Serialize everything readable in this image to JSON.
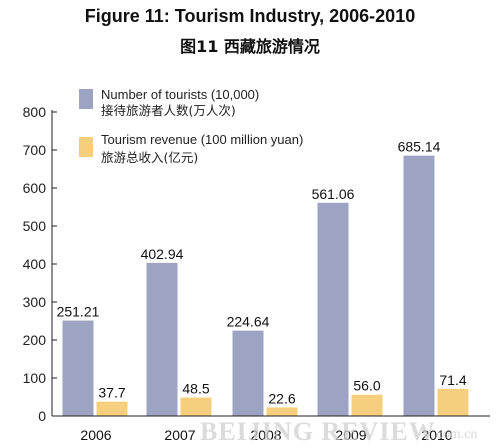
{
  "title_en": "Figure 11: Tourism Industry, 2006-2010",
  "title_cn": "图11  西藏旅游情况",
  "watermark": "BEIJING REVIEW",
  "watermark_suffix": ".com.cn",
  "colors": {
    "tourists": "#9da3c2",
    "revenue": "#f5cf7e"
  },
  "chart_data": {
    "type": "bar",
    "categories": [
      "2006",
      "2007",
      "2008",
      "2009",
      "2010"
    ],
    "ylim": [
      0,
      800
    ],
    "yticks": [
      0,
      100,
      200,
      300,
      400,
      500,
      600,
      700,
      800
    ],
    "series": [
      {
        "name": "Number of tourists (10,000)",
        "name_cn": "接待旅游者人数(万人次)",
        "values": [
          251.21,
          402.94,
          224.64,
          561.06,
          685.14
        ],
        "labels": [
          "251.21",
          "402.94",
          "224.64",
          "561.06",
          "685.14"
        ]
      },
      {
        "name": "Tourism revenue (100 million yuan)",
        "name_cn": "旅游总收入(亿元)",
        "values": [
          37.7,
          48.5,
          22.6,
          56.0,
          71.4
        ],
        "labels": [
          "37.7",
          "48.5",
          "22.6",
          "56.0",
          "71.4"
        ]
      }
    ]
  }
}
